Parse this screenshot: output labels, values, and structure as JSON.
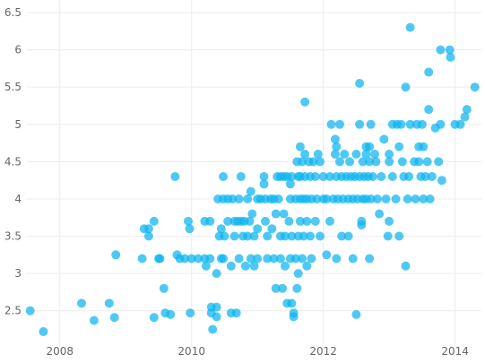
{
  "chart_data": {
    "type": "scatter",
    "title": "",
    "xlabel": "",
    "ylabel": "",
    "color": "#0bb4f0",
    "grid": true,
    "xlim": [
      2007.5,
      2014.4
    ],
    "ylim": [
      2.1,
      6.5
    ],
    "x_ticks": [
      2008,
      2010,
      2012,
      2014
    ],
    "y_ticks": [
      2.5,
      3,
      3.5,
      4,
      4.5,
      5,
      5.5,
      6,
      6.5
    ],
    "x_tick_labels": [
      "2008",
      "2010",
      "2012",
      "2014"
    ],
    "y_tick_labels": [
      "2.5",
      "3",
      "3.5",
      "4",
      "4.5",
      "5",
      "5.5",
      "6",
      "6.5"
    ],
    "series": [
      {
        "points": [
          [
            2007.55,
            2.5
          ],
          [
            2007.75,
            2.22
          ],
          [
            2008.33,
            2.6
          ],
          [
            2008.52,
            2.37
          ],
          [
            2008.75,
            2.6
          ],
          [
            2008.83,
            2.41
          ],
          [
            2008.85,
            3.25
          ],
          [
            2009.25,
            3.2
          ],
          [
            2009.28,
            3.6
          ],
          [
            2009.35,
            3.6
          ],
          [
            2009.35,
            3.5
          ],
          [
            2009.43,
            3.7
          ],
          [
            2009.5,
            3.2
          ],
          [
            2009.52,
            3.2
          ],
          [
            2009.58,
            2.8
          ],
          [
            2009.6,
            2.47
          ],
          [
            2009.68,
            2.45
          ],
          [
            2009.43,
            2.41
          ],
          [
            2009.75,
            4.3
          ],
          [
            2009.78,
            3.25
          ],
          [
            2009.82,
            3.2
          ],
          [
            2009.9,
            3.2
          ],
          [
            2009.95,
            3.7
          ],
          [
            2009.97,
            3.6
          ],
          [
            2010.0,
            3.2
          ],
          [
            2009.98,
            2.47
          ],
          [
            2010.1,
            3.2
          ],
          [
            2010.2,
            3.7
          ],
          [
            2010.2,
            3.2
          ],
          [
            2010.22,
            3.1
          ],
          [
            2010.28,
            3.7
          ],
          [
            2010.28,
            3.2
          ],
          [
            2010.3,
            2.55
          ],
          [
            2010.3,
            2.47
          ],
          [
            2010.32,
            2.25
          ],
          [
            2010.38,
            3.0
          ],
          [
            2010.38,
            2.55
          ],
          [
            2010.38,
            2.42
          ],
          [
            2010.4,
            4.0
          ],
          [
            2010.42,
            3.5
          ],
          [
            2010.45,
            3.6
          ],
          [
            2010.45,
            3.2
          ],
          [
            2010.48,
            4.3
          ],
          [
            2010.48,
            4.0
          ],
          [
            2010.48,
            3.2
          ],
          [
            2010.5,
            3.5
          ],
          [
            2010.55,
            4.0
          ],
          [
            2010.55,
            3.7
          ],
          [
            2010.6,
            3.1
          ],
          [
            2010.6,
            2.47
          ],
          [
            2010.62,
            4.0
          ],
          [
            2010.65,
            3.7
          ],
          [
            2010.65,
            3.5
          ],
          [
            2010.68,
            2.47
          ],
          [
            2010.7,
            3.7
          ],
          [
            2010.72,
            4.0
          ],
          [
            2010.72,
            3.2
          ],
          [
            2010.75,
            4.3
          ],
          [
            2010.75,
            3.7
          ],
          [
            2010.78,
            3.5
          ],
          [
            2010.8,
            3.7
          ],
          [
            2010.82,
            3.1
          ],
          [
            2010.85,
            4.0
          ],
          [
            2010.85,
            3.5
          ],
          [
            2010.88,
            3.7
          ],
          [
            2010.9,
            4.1
          ],
          [
            2010.9,
            3.2
          ],
          [
            2010.92,
            3.8
          ],
          [
            2010.95,
            3.5
          ],
          [
            2010.95,
            3.1
          ],
          [
            2011.0,
            4.0
          ],
          [
            2011.0,
            3.6
          ],
          [
            2011.0,
            3.2
          ],
          [
            2011.05,
            4.0
          ],
          [
            2011.1,
            4.3
          ],
          [
            2011.1,
            4.2
          ],
          [
            2011.12,
            4.0
          ],
          [
            2011.12,
            3.7
          ],
          [
            2011.15,
            3.5
          ],
          [
            2011.15,
            3.2
          ],
          [
            2011.2,
            4.0
          ],
          [
            2011.22,
            3.6
          ],
          [
            2011.25,
            4.0
          ],
          [
            2011.25,
            3.2
          ],
          [
            2011.28,
            3.8
          ],
          [
            2011.28,
            2.8
          ],
          [
            2011.3,
            4.3
          ],
          [
            2011.32,
            4.0
          ],
          [
            2011.35,
            4.3
          ],
          [
            2011.35,
            3.5
          ],
          [
            2011.35,
            3.2
          ],
          [
            2011.38,
            2.8
          ],
          [
            2011.4,
            4.3
          ],
          [
            2011.4,
            3.8
          ],
          [
            2011.42,
            3.5
          ],
          [
            2011.42,
            3.1
          ],
          [
            2011.45,
            4.3
          ],
          [
            2011.45,
            2.6
          ],
          [
            2011.48,
            3.7
          ],
          [
            2011.5,
            4.2
          ],
          [
            2011.5,
            4.0
          ],
          [
            2011.5,
            3.2
          ],
          [
            2011.52,
            4.3
          ],
          [
            2011.52,
            3.5
          ],
          [
            2011.52,
            2.6
          ],
          [
            2011.55,
            2.47
          ],
          [
            2011.55,
            2.42
          ],
          [
            2011.58,
            4.0
          ],
          [
            2011.58,
            3.2
          ],
          [
            2011.6,
            4.5
          ],
          [
            2011.6,
            2.8
          ],
          [
            2011.62,
            4.3
          ],
          [
            2011.62,
            3.5
          ],
          [
            2011.62,
            3.0
          ],
          [
            2011.65,
            4.7
          ],
          [
            2011.65,
            4.3
          ],
          [
            2011.65,
            4.0
          ],
          [
            2011.65,
            3.7
          ],
          [
            2011.68,
            4.5
          ],
          [
            2011.68,
            3.2
          ],
          [
            2011.7,
            4.0
          ],
          [
            2011.7,
            3.5
          ],
          [
            2011.72,
            5.3
          ],
          [
            2011.72,
            4.6
          ],
          [
            2011.72,
            4.3
          ],
          [
            2011.75,
            4.0
          ],
          [
            2011.75,
            3.7
          ],
          [
            2011.75,
            3.1
          ],
          [
            2011.78,
            4.5
          ],
          [
            2011.8,
            4.3
          ],
          [
            2011.8,
            3.5
          ],
          [
            2011.82,
            4.0
          ],
          [
            2011.82,
            3.2
          ],
          [
            2011.85,
            4.5
          ],
          [
            2011.88,
            4.3
          ],
          [
            2011.88,
            3.7
          ],
          [
            2011.9,
            4.0
          ],
          [
            2011.92,
            4.6
          ],
          [
            2011.95,
            4.5
          ],
          [
            2011.95,
            3.5
          ],
          [
            2012.0,
            4.3
          ],
          [
            2012.0,
            4.0
          ],
          [
            2012.05,
            4.0
          ],
          [
            2012.05,
            3.25
          ],
          [
            2012.1,
            4.3
          ],
          [
            2012.1,
            3.7
          ],
          [
            2012.12,
            5.0
          ],
          [
            2012.15,
            4.0
          ],
          [
            2012.18,
            4.8
          ],
          [
            2012.18,
            4.6
          ],
          [
            2012.2,
            4.7
          ],
          [
            2012.2,
            4.3
          ],
          [
            2012.2,
            3.2
          ],
          [
            2012.22,
            4.0
          ],
          [
            2012.25,
            5.0
          ],
          [
            2012.25,
            4.5
          ],
          [
            2012.28,
            4.3
          ],
          [
            2012.28,
            3.5
          ],
          [
            2012.3,
            4.0
          ],
          [
            2012.32,
            4.6
          ],
          [
            2012.35,
            4.3
          ],
          [
            2012.38,
            4.0
          ],
          [
            2012.38,
            3.5
          ],
          [
            2012.4,
            4.5
          ],
          [
            2012.42,
            4.3
          ],
          [
            2012.45,
            4.0
          ],
          [
            2012.45,
            3.2
          ],
          [
            2012.48,
            4.3
          ],
          [
            2012.5,
            4.6
          ],
          [
            2012.5,
            2.45
          ],
          [
            2012.52,
            4.0
          ],
          [
            2012.55,
            5.55
          ],
          [
            2012.55,
            5.0
          ],
          [
            2012.55,
            4.3
          ],
          [
            2012.58,
            3.7
          ],
          [
            2012.58,
            3.65
          ],
          [
            2012.6,
            4.5
          ],
          [
            2012.6,
            4.0
          ],
          [
            2012.62,
            4.3
          ],
          [
            2012.65,
            4.7
          ],
          [
            2012.65,
            4.6
          ],
          [
            2012.65,
            4.0
          ],
          [
            2012.68,
            4.3
          ],
          [
            2012.7,
            4.7
          ],
          [
            2012.7,
            4.5
          ],
          [
            2012.7,
            3.2
          ],
          [
            2012.72,
            5.0
          ],
          [
            2012.72,
            4.0
          ],
          [
            2012.75,
            4.3
          ],
          [
            2012.78,
            4.6
          ],
          [
            2012.8,
            4.5
          ],
          [
            2012.82,
            4.0
          ],
          [
            2012.85,
            3.8
          ],
          [
            2012.88,
            4.3
          ],
          [
            2012.92,
            4.8
          ],
          [
            2012.95,
            4.0
          ],
          [
            2012.98,
            3.5
          ],
          [
            2013.0,
            4.6
          ],
          [
            2013.0,
            4.5
          ],
          [
            2013.0,
            3.7
          ],
          [
            2013.05,
            5.0
          ],
          [
            2013.05,
            4.3
          ],
          [
            2013.1,
            4.0
          ],
          [
            2013.12,
            5.0
          ],
          [
            2013.15,
            4.7
          ],
          [
            2013.15,
            3.5
          ],
          [
            2013.18,
            5.0
          ],
          [
            2013.2,
            4.5
          ],
          [
            2013.22,
            4.3
          ],
          [
            2013.25,
            5.5
          ],
          [
            2013.25,
            3.1
          ],
          [
            2013.28,
            4.0
          ],
          [
            2013.3,
            4.3
          ],
          [
            2013.32,
            6.3
          ],
          [
            2013.32,
            5.0
          ],
          [
            2013.38,
            4.5
          ],
          [
            2013.4,
            4.0
          ],
          [
            2013.42,
            5.0
          ],
          [
            2013.45,
            4.7
          ],
          [
            2013.45,
            4.5
          ],
          [
            2013.48,
            4.3
          ],
          [
            2013.5,
            5.0
          ],
          [
            2013.52,
            4.7
          ],
          [
            2013.52,
            4.0
          ],
          [
            2013.55,
            4.3
          ],
          [
            2013.58,
            4.5
          ],
          [
            2013.6,
            5.7
          ],
          [
            2013.6,
            5.2
          ],
          [
            2013.62,
            4.0
          ],
          [
            2013.65,
            4.3
          ],
          [
            2013.7,
            4.95
          ],
          [
            2013.75,
            4.5
          ],
          [
            2013.78,
            6.0
          ],
          [
            2013.78,
            5.0
          ],
          [
            2013.8,
            4.25
          ],
          [
            2013.92,
            6.0
          ],
          [
            2013.93,
            5.9
          ],
          [
            2014.0,
            5.0
          ],
          [
            2014.08,
            5.0
          ],
          [
            2014.15,
            5.1
          ],
          [
            2014.18,
            5.2
          ],
          [
            2014.3,
            5.5
          ]
        ]
      }
    ]
  }
}
